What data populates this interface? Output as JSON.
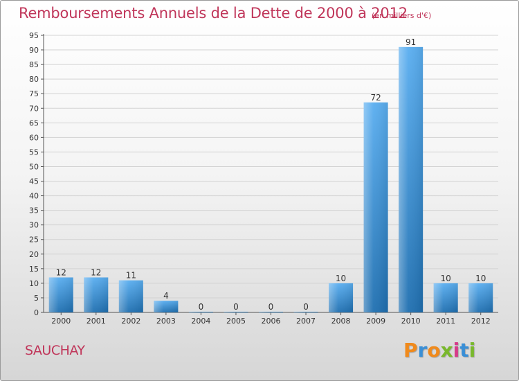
{
  "header": {
    "title": "Remboursements Annuels de la Dette de 2000 à 2012",
    "unit": "(en milliers d'€)"
  },
  "footer": {
    "commune": "SAUCHAY",
    "logo_text": "Proxiti"
  },
  "colors": {
    "title": "#c0365a",
    "bar_top": "#5aaef0",
    "bar_bottom": "#1f6fb0",
    "logo_letters": [
      "#f08a1c",
      "#3a8fd6",
      "#f08a1c",
      "#79b82c",
      "#d63a8a",
      "#3a8fd6",
      "#79b82c"
    ]
  },
  "chart_data": {
    "type": "bar",
    "title": "Remboursements Annuels de la Dette de 2000 à 2012",
    "subtitle": "(en milliers d'€)",
    "categories": [
      "2000",
      "2001",
      "2002",
      "2003",
      "2004",
      "2005",
      "2006",
      "2007",
      "2008",
      "2009",
      "2010",
      "2011",
      "2012"
    ],
    "values": [
      12,
      12,
      11,
      4,
      0,
      0,
      0,
      0,
      10,
      72,
      91,
      10,
      10
    ],
    "data_labels": [
      "12",
      "12",
      "11",
      "4",
      "0",
      "0",
      "0",
      "0",
      "10",
      "72",
      "91",
      "10",
      "10"
    ],
    "y_ticks": [
      "0",
      "5",
      "10",
      "15",
      "20",
      "25",
      "30",
      "35",
      "40",
      "45",
      "50",
      "55",
      "60",
      "65",
      "70",
      "75",
      "80",
      "85",
      "90",
      "95"
    ],
    "ylim": [
      0,
      95
    ],
    "y_step": 5,
    "grid": true,
    "legend": "none",
    "xlabel": "",
    "ylabel": ""
  }
}
